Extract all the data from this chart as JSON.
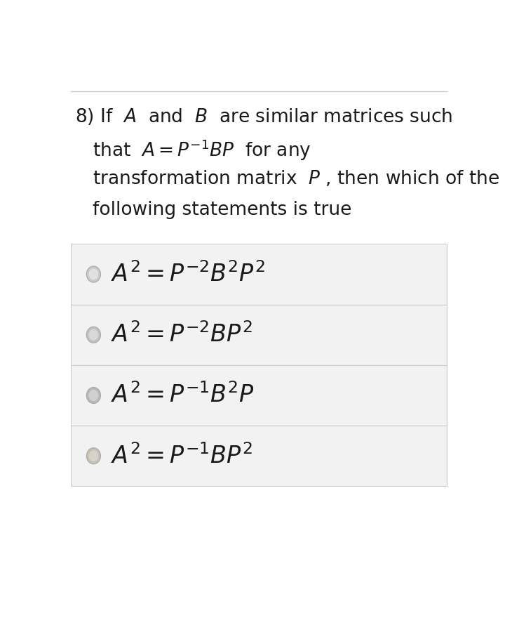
{
  "background_color": "#ffffff",
  "top_line_color": "#c8c8c8",
  "question_lines": [
    [
      "8) If  ",
      "italic",
      "$A$",
      "  and  ",
      "italic",
      "$B$",
      "  are similar matrices such"
    ],
    [
      "that  ",
      "italic",
      "$A = P^{-1}BP$",
      "  for any"
    ],
    [
      "transformation matrix  ",
      "italic",
      "$P$",
      " , then which of the"
    ],
    [
      "following statements is true"
    ]
  ],
  "options": [
    "$A^2 = P^{-2}B^2P^2$",
    "$A^2 = P^{-2}BP^2$",
    "$A^2 = P^{-1}B^2P$",
    "$A^2 = P^{-1}BP^2$"
  ],
  "option_bg_color": "#f2f2f2",
  "option_border_color": "#cccccc",
  "radio_colors": [
    "#c8c8c8",
    "#c0c0c0",
    "#b8b8b8",
    "#c4bfb5"
  ],
  "text_color": "#1a1a1a",
  "q_fontsize": 19,
  "opt_fontsize": 24
}
